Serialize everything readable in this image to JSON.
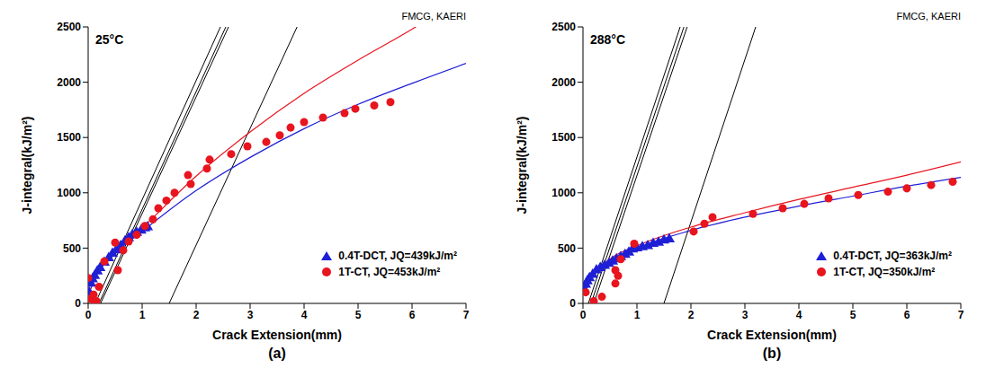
{
  "chart_data": [
    {
      "type": "scatter",
      "title": "25°C",
      "source": "FMCG, KAERI",
      "caption": "(a)",
      "x_label": "Crack Extension(mm)",
      "y_label": "J-integral(kJ/m²)",
      "xlim": [
        0,
        7
      ],
      "xticks": [
        0,
        1,
        2,
        3,
        4,
        5,
        6,
        7
      ],
      "ylim": [
        0,
        2500
      ],
      "yticks": [
        0,
        500,
        1000,
        1500,
        2000,
        2500
      ],
      "grid": false,
      "legend": "lower right",
      "series": [
        {
          "name": "0.4T-DCT, JQ=439kJ/m²",
          "color": "#1f1fd6",
          "marker": "triangle",
          "x": [
            0.02,
            0.05,
            0.08,
            0.12,
            0.17,
            0.22,
            0.3,
            0.38,
            0.45,
            0.52,
            0.6,
            0.68,
            0.75,
            0.82,
            0.9,
            0.98,
            1.05,
            1.1
          ],
          "values": [
            100,
            180,
            220,
            250,
            290,
            320,
            370,
            410,
            450,
            480,
            520,
            560,
            590,
            620,
            640,
            660,
            680,
            690
          ]
        },
        {
          "name": "1T-CT, JQ=453kJ/m²",
          "color": "#e8141e",
          "marker": "circle",
          "x": [
            0,
            0.05,
            0.1,
            0.12,
            0.15,
            0.2,
            0.3,
            0.5,
            0.55,
            0.65,
            0.75,
            0.9,
            1.05,
            1.2,
            1.3,
            1.45,
            1.6,
            1.85,
            1.9,
            2.2,
            2.25,
            2.65,
            2.95,
            3.3,
            3.55,
            3.75,
            4,
            4.35,
            4.75,
            4.95,
            5.3,
            5.6
          ],
          "values": [
            230,
            40,
            80,
            0,
            20,
            150,
            380,
            550,
            300,
            480,
            560,
            620,
            700,
            760,
            860,
            930,
            1000,
            1160,
            1080,
            1220,
            1300,
            1350,
            1420,
            1460,
            1520,
            1590,
            1640,
            1680,
            1720,
            1760,
            1790,
            1820
          ]
        }
      ],
      "fit_curves": [
        {
          "color": "#e8141e",
          "line_style": "solid",
          "x": [
            0.05,
            0.1,
            0.5,
            1,
            2,
            3,
            4,
            5,
            6,
            6.2
          ],
          "values": [
            130,
            200,
            450,
            680,
            1150,
            1550,
            1900,
            2200,
            2480,
            2540
          ]
        },
        {
          "color": "#1f1fd6",
          "line_style": "solid",
          "x": [
            0.05,
            0.1,
            0.5,
            1,
            2,
            3,
            4,
            5,
            6,
            7
          ],
          "values": [
            140,
            200,
            450,
            650,
            1020,
            1320,
            1580,
            1800,
            1990,
            2170
          ]
        }
      ],
      "lines": [
        {
          "color": "#000000",
          "line_style": "solid",
          "x": [
            0.13,
            2.45
          ],
          "values": [
            0,
            2500
          ]
        },
        {
          "color": "#000000",
          "line_style": "solid",
          "x": [
            0.2,
            2.55
          ],
          "values": [
            0,
            2500
          ]
        },
        {
          "color": "#000000",
          "line_style": "solid",
          "x": [
            0.23,
            2.6
          ],
          "values": [
            0,
            2500
          ]
        },
        {
          "color": "#000000",
          "line_style": "solid",
          "x": [
            1.5,
            3.87
          ],
          "values": [
            0,
            2500
          ]
        }
      ]
    },
    {
      "type": "scatter",
      "title": "288°C",
      "source": "FMCG, KAERI",
      "caption": "(b)",
      "x_label": "Crack Extension(mm)",
      "y_label": "J-integral(kJ/m²)",
      "xlim": [
        0,
        7
      ],
      "xticks": [
        0,
        1,
        2,
        3,
        4,
        5,
        6,
        7
      ],
      "ylim": [
        0,
        2500
      ],
      "yticks": [
        0,
        500,
        1000,
        1500,
        2000,
        2500
      ],
      "grid": false,
      "legend": "lower right",
      "series": [
        {
          "name": "0.4T-DCT, JQ=363kJ/m²",
          "color": "#1f1fd6",
          "marker": "triangle",
          "x": [
            0.02,
            0.05,
            0.08,
            0.12,
            0.18,
            0.25,
            0.32,
            0.4,
            0.48,
            0.55,
            0.62,
            0.7,
            0.78,
            0.85,
            0.92,
            1.0,
            1.1,
            1.2,
            1.3,
            1.4,
            1.5,
            1.6
          ],
          "values": [
            120,
            170,
            200,
            230,
            260,
            300,
            320,
            340,
            360,
            380,
            400,
            420,
            440,
            460,
            490,
            500,
            510,
            520,
            540,
            550,
            570,
            580
          ]
        },
        {
          "name": "1T-CT, JQ=350kJ/m²",
          "color": "#e8141e",
          "marker": "circle",
          "x": [
            0.05,
            0.2,
            0.35,
            0.6,
            0.65,
            0.6,
            0.7,
            0.95,
            2.05,
            2.25,
            2.4,
            3.15,
            3.7,
            4.1,
            4.55,
            5.1,
            5.65,
            6,
            6.45,
            6.85
          ],
          "values": [
            100,
            20,
            60,
            180,
            250,
            300,
            400,
            540,
            650,
            720,
            780,
            810,
            860,
            900,
            950,
            980,
            1010,
            1040,
            1070,
            1100
          ]
        }
      ],
      "fit_curves": [
        {
          "color": "#e8141e",
          "line_style": "solid",
          "x": [
            0.05,
            0.1,
            0.5,
            1,
            2,
            3,
            4,
            5,
            6,
            7
          ],
          "values": [
            120,
            180,
            400,
            520,
            690,
            820,
            940,
            1050,
            1160,
            1280
          ]
        },
        {
          "color": "#1f1fd6",
          "line_style": "solid",
          "x": [
            0.05,
            0.1,
            0.5,
            1,
            2,
            3,
            4,
            5,
            6,
            7
          ],
          "values": [
            110,
            170,
            380,
            500,
            660,
            780,
            880,
            970,
            1060,
            1140
          ]
        }
      ],
      "lines": [
        {
          "color": "#000000",
          "line_style": "solid",
          "x": [
            0.1,
            1.8
          ],
          "values": [
            0,
            2500
          ]
        },
        {
          "color": "#000000",
          "line_style": "solid",
          "x": [
            0.15,
            1.87
          ],
          "values": [
            0,
            2500
          ]
        },
        {
          "color": "#000000",
          "line_style": "solid",
          "x": [
            0.2,
            1.93
          ],
          "values": [
            0,
            2500
          ]
        },
        {
          "color": "#000000",
          "line_style": "solid",
          "x": [
            1.5,
            3.2
          ],
          "values": [
            0,
            2500
          ]
        }
      ]
    }
  ]
}
